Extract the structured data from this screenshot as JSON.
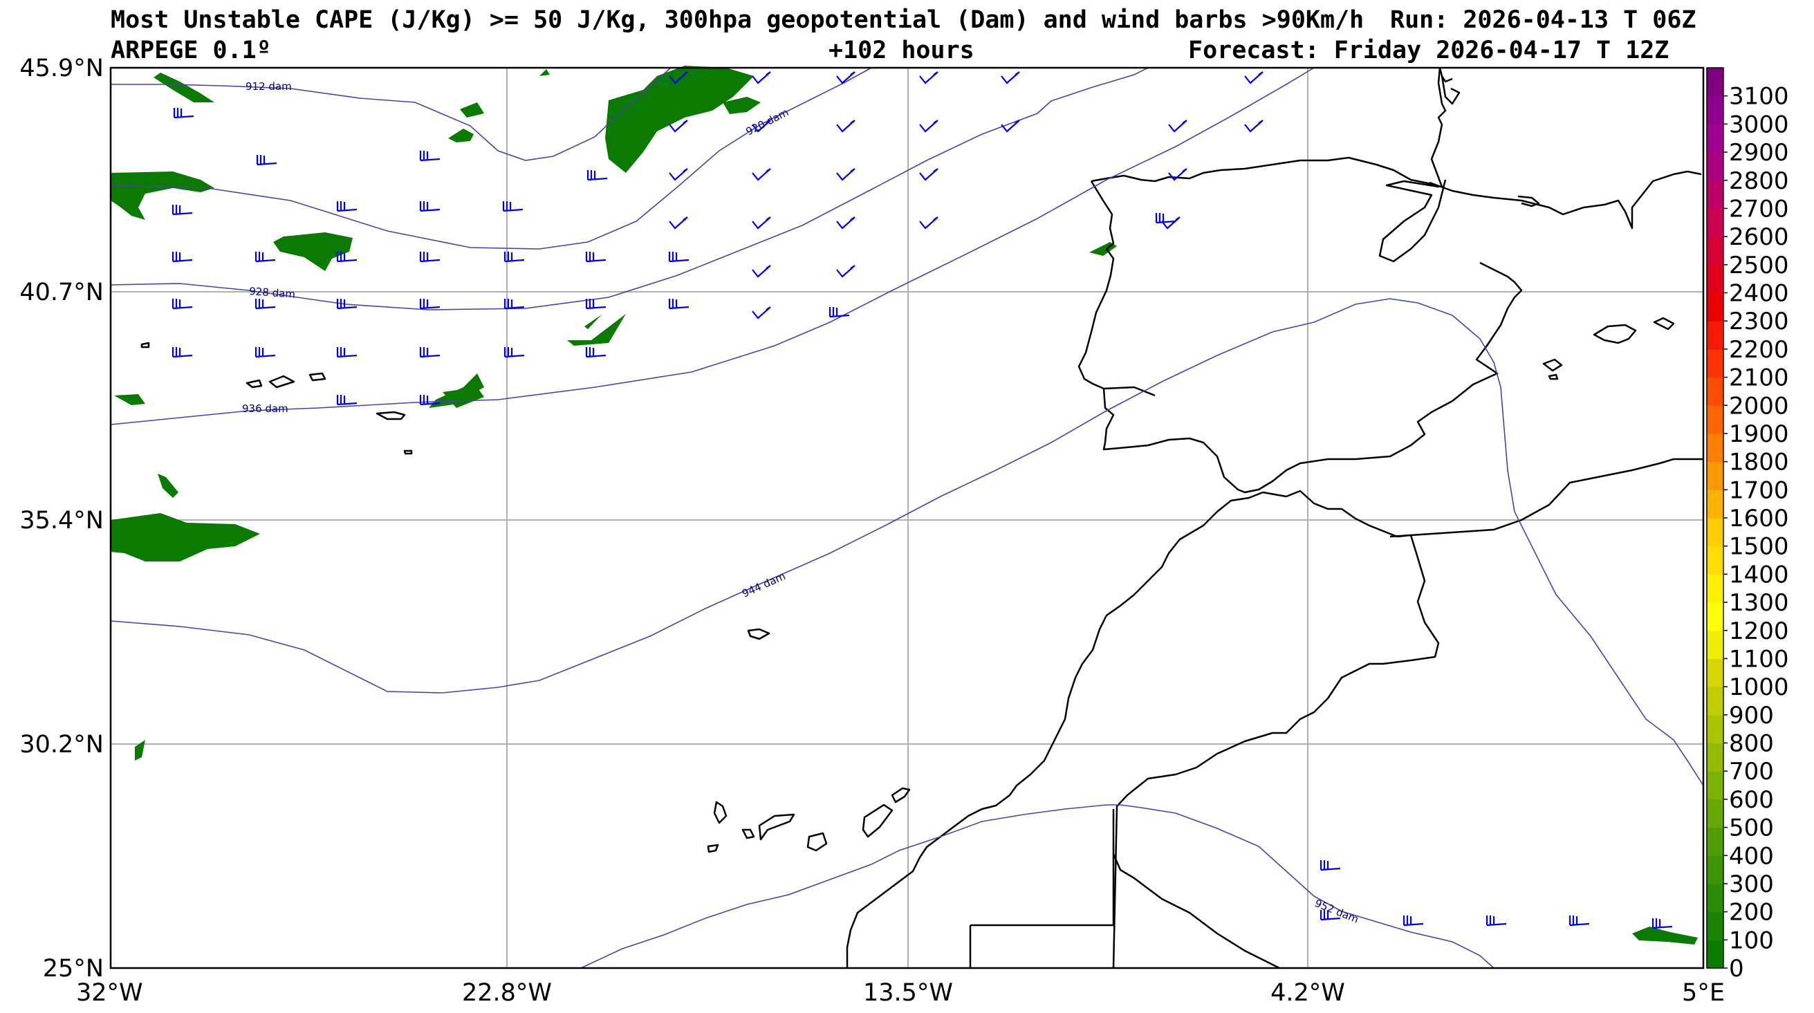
{
  "header": {
    "title": "Most Unstable CAPE (J/Kg) >= 50 J/Kg, 300hpa geopotential (Dam) and wind barbs >90Km/h",
    "run": "Run: 2026-04-13 T 06Z",
    "model": "ARPEGE 0.1º",
    "lead": "+102 hours",
    "forecast": "Forecast: Friday 2026-04-17 T 12Z"
  },
  "map": {
    "lon_range": [
      -32,
      5
    ],
    "lat_range": [
      25,
      45.9
    ],
    "lon_ticks": [
      {
        "value": -32,
        "label": "32°W"
      },
      {
        "value": -22.8,
        "label": "22.8°W"
      },
      {
        "value": -13.5,
        "label": "13.5°W"
      },
      {
        "value": -4.2,
        "label": "4.2°W"
      },
      {
        "value": 5,
        "label": "5°E"
      }
    ],
    "lat_ticks": [
      {
        "value": 45.9,
        "label": "45.9°N"
      },
      {
        "value": 40.7,
        "label": "40.7°N"
      },
      {
        "value": 35.4,
        "label": "35.4°N"
      },
      {
        "value": 30.2,
        "label": "30.2°N"
      },
      {
        "value": 25,
        "label": "25°N"
      }
    ],
    "grid": true,
    "contour_color": "#4444aa",
    "contour_label_color": "#000080",
    "barb_color": "#0000ee",
    "coast_color": "#000000",
    "contour_labels": [
      "912 dam",
      "920 dam",
      "928 dam",
      "936 dam",
      "944 dam",
      "952 dam"
    ]
  },
  "colorbar": {
    "ticks": [
      "0",
      "100",
      "200",
      "300",
      "400",
      "500",
      "600",
      "700",
      "800",
      "900",
      "1000",
      "1100",
      "1200",
      "1300",
      "1400",
      "1500",
      "1600",
      "1700",
      "1800",
      "1900",
      "2000",
      "2100",
      "2200",
      "2300",
      "2400",
      "2500",
      "2600",
      "2700",
      "2800",
      "2900",
      "3000",
      "3100"
    ],
    "colors": [
      "#0a7a00",
      "#1a8300",
      "#2a8c00",
      "#3a9500",
      "#4f9e00",
      "#66a800",
      "#7cb200",
      "#94bb00",
      "#aac400",
      "#bfcc00",
      "#d6d600",
      "#eeee00",
      "#ffff00",
      "#ffee00",
      "#ffdd00",
      "#ffcc00",
      "#ffb300",
      "#ff9900",
      "#ff8000",
      "#ff6600",
      "#ff4d00",
      "#ff3300",
      "#f51a00",
      "#eb0000",
      "#e0001a",
      "#d40033",
      "#c8004d",
      "#bb0066",
      "#ad0080",
      "#a00090",
      "#8f0090",
      "#800080"
    ]
  }
}
